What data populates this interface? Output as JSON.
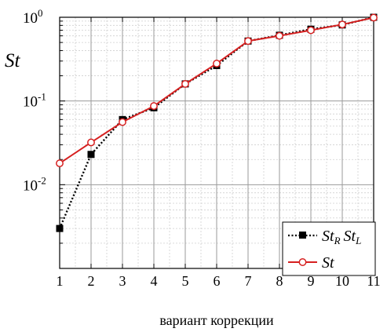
{
  "chart_data": {
    "type": "line",
    "title": "",
    "xlabel": "вариант коррекции",
    "ylabel": "St",
    "y_scale": "log",
    "ylim": [
      0.001,
      1
    ],
    "xlim": [
      1,
      11
    ],
    "grid": true,
    "legend_position": "bottom-right",
    "x": [
      1,
      2,
      3,
      4,
      5,
      6,
      7,
      8,
      9,
      10,
      11
    ],
    "x_tick_labels": [
      "1",
      "2",
      "3",
      "4",
      "5",
      "6",
      "7",
      "8",
      "9",
      "10",
      "11"
    ],
    "y_tick_labels": [
      {
        "base": "10",
        "exp": "0",
        "value": 1
      },
      {
        "base": "10",
        "exp": "-1",
        "value": 0.1
      },
      {
        "base": "10",
        "exp": "-2",
        "value": 0.01
      }
    ],
    "series": [
      {
        "name": "St_R St_L",
        "legend_main": "St",
        "legend_sub_1": "R",
        "legend_mid": "St",
        "legend_sub_2": "L",
        "values": [
          0.003,
          0.023,
          0.06,
          0.083,
          0.16,
          0.265,
          0.52,
          0.61,
          0.72,
          0.81,
          1.0
        ],
        "color": "#000000",
        "line_style": "dotted",
        "marker": "filled-square"
      },
      {
        "name": "St",
        "legend_main": "St",
        "values": [
          0.018,
          0.032,
          0.056,
          0.087,
          0.16,
          0.28,
          0.52,
          0.6,
          0.7,
          0.82,
          0.99
        ],
        "color": "#d62020",
        "line_style": "solid",
        "marker": "open-circle"
      }
    ]
  }
}
